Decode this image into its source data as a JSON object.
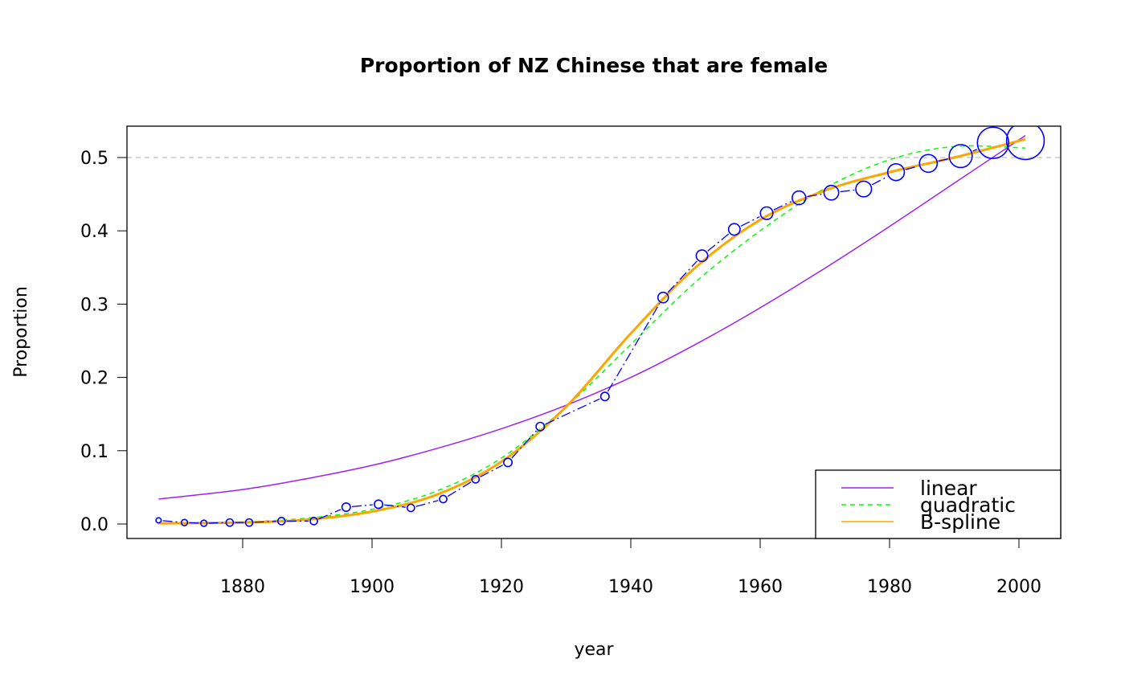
{
  "chart_data": {
    "type": "line",
    "title": "Proportion of NZ Chinese that are female",
    "xlabel": "year",
    "ylabel": "Proportion",
    "xlim": [
      1862,
      2006
    ],
    "ylim": [
      -0.02,
      0.543
    ],
    "xticks": [
      1880,
      1900,
      1920,
      1940,
      1960,
      1980,
      2000
    ],
    "yticks": [
      0.0,
      0.1,
      0.2,
      0.3,
      0.4,
      0.5
    ],
    "ytick_labels": [
      "0.0",
      "0.1",
      "0.2",
      "0.3",
      "0.4",
      "0.5"
    ],
    "xtick_labels": [
      "1880",
      "1900",
      "1920",
      "1940",
      "1960",
      "1980",
      "2000"
    ],
    "reference_line": {
      "y": 0.5,
      "color": "#bebebe",
      "style": "dashed"
    },
    "observed": {
      "color": "#0000ff",
      "x": [
        1867,
        1871,
        1874,
        1878,
        1881,
        1886,
        1891,
        1896,
        1901,
        1906,
        1911,
        1916,
        1921,
        1926,
        1936,
        1945,
        1951,
        1956,
        1961,
        1966,
        1971,
        1976,
        1981,
        1986,
        1991,
        1996,
        2001
      ],
      "y": [
        0.005,
        0.002,
        0.001,
        0.002,
        0.002,
        0.004,
        0.004,
        0.023,
        0.027,
        0.022,
        0.034,
        0.061,
        0.084,
        0.133,
        0.174,
        0.309,
        0.366,
        0.402,
        0.424,
        0.445,
        0.452,
        0.457,
        0.48,
        0.492,
        0.502,
        0.52,
        0.523
      ],
      "relative_size": [
        0.5,
        0.6,
        0.6,
        0.7,
        0.7,
        0.7,
        0.7,
        0.8,
        0.8,
        0.7,
        0.7,
        0.7,
        0.8,
        0.8,
        0.8,
        1,
        1.1,
        1.1,
        1.2,
        1.3,
        1.4,
        1.5,
        1.6,
        1.7,
        2.2,
        3.0,
        3.6
      ]
    },
    "series": [
      {
        "name": "linear",
        "color": "#a020f0",
        "style": "solid",
        "width": 1.5,
        "x": [
          1867,
          1880,
          1890,
          1900,
          1910,
          1920,
          1930,
          1940,
          1950,
          1960,
          1970,
          1980,
          1990,
          2001
        ],
        "y": [
          0.034,
          0.047,
          0.062,
          0.08,
          0.103,
          0.13,
          0.162,
          0.2,
          0.245,
          0.295,
          0.349,
          0.406,
          0.465,
          0.53
        ]
      },
      {
        "name": "quadratic",
        "color": "#00ff00",
        "style": "dashed",
        "width": 1.5,
        "x": [
          1867,
          1880,
          1890,
          1900,
          1910,
          1920,
          1930,
          1940,
          1950,
          1960,
          1970,
          1980,
          1990,
          2001
        ],
        "y": [
          0.001,
          0.003,
          0.008,
          0.02,
          0.045,
          0.09,
          0.16,
          0.245,
          0.33,
          0.4,
          0.458,
          0.497,
          0.515,
          0.513
        ]
      },
      {
        "name": "B-spline",
        "color": "#ffa500",
        "style": "solid",
        "width": 3,
        "x": [
          1867,
          1880,
          1890,
          1900,
          1910,
          1920,
          1930,
          1940,
          1950,
          1960,
          1970,
          1980,
          1990,
          2001
        ],
        "y": [
          0.001,
          0.002,
          0.006,
          0.017,
          0.04,
          0.085,
          0.16,
          0.26,
          0.35,
          0.415,
          0.455,
          0.48,
          0.5,
          0.525
        ]
      }
    ],
    "legend": {
      "placement": "bottom-right",
      "entries": [
        "linear",
        "quadratic",
        "B-spline"
      ]
    }
  }
}
